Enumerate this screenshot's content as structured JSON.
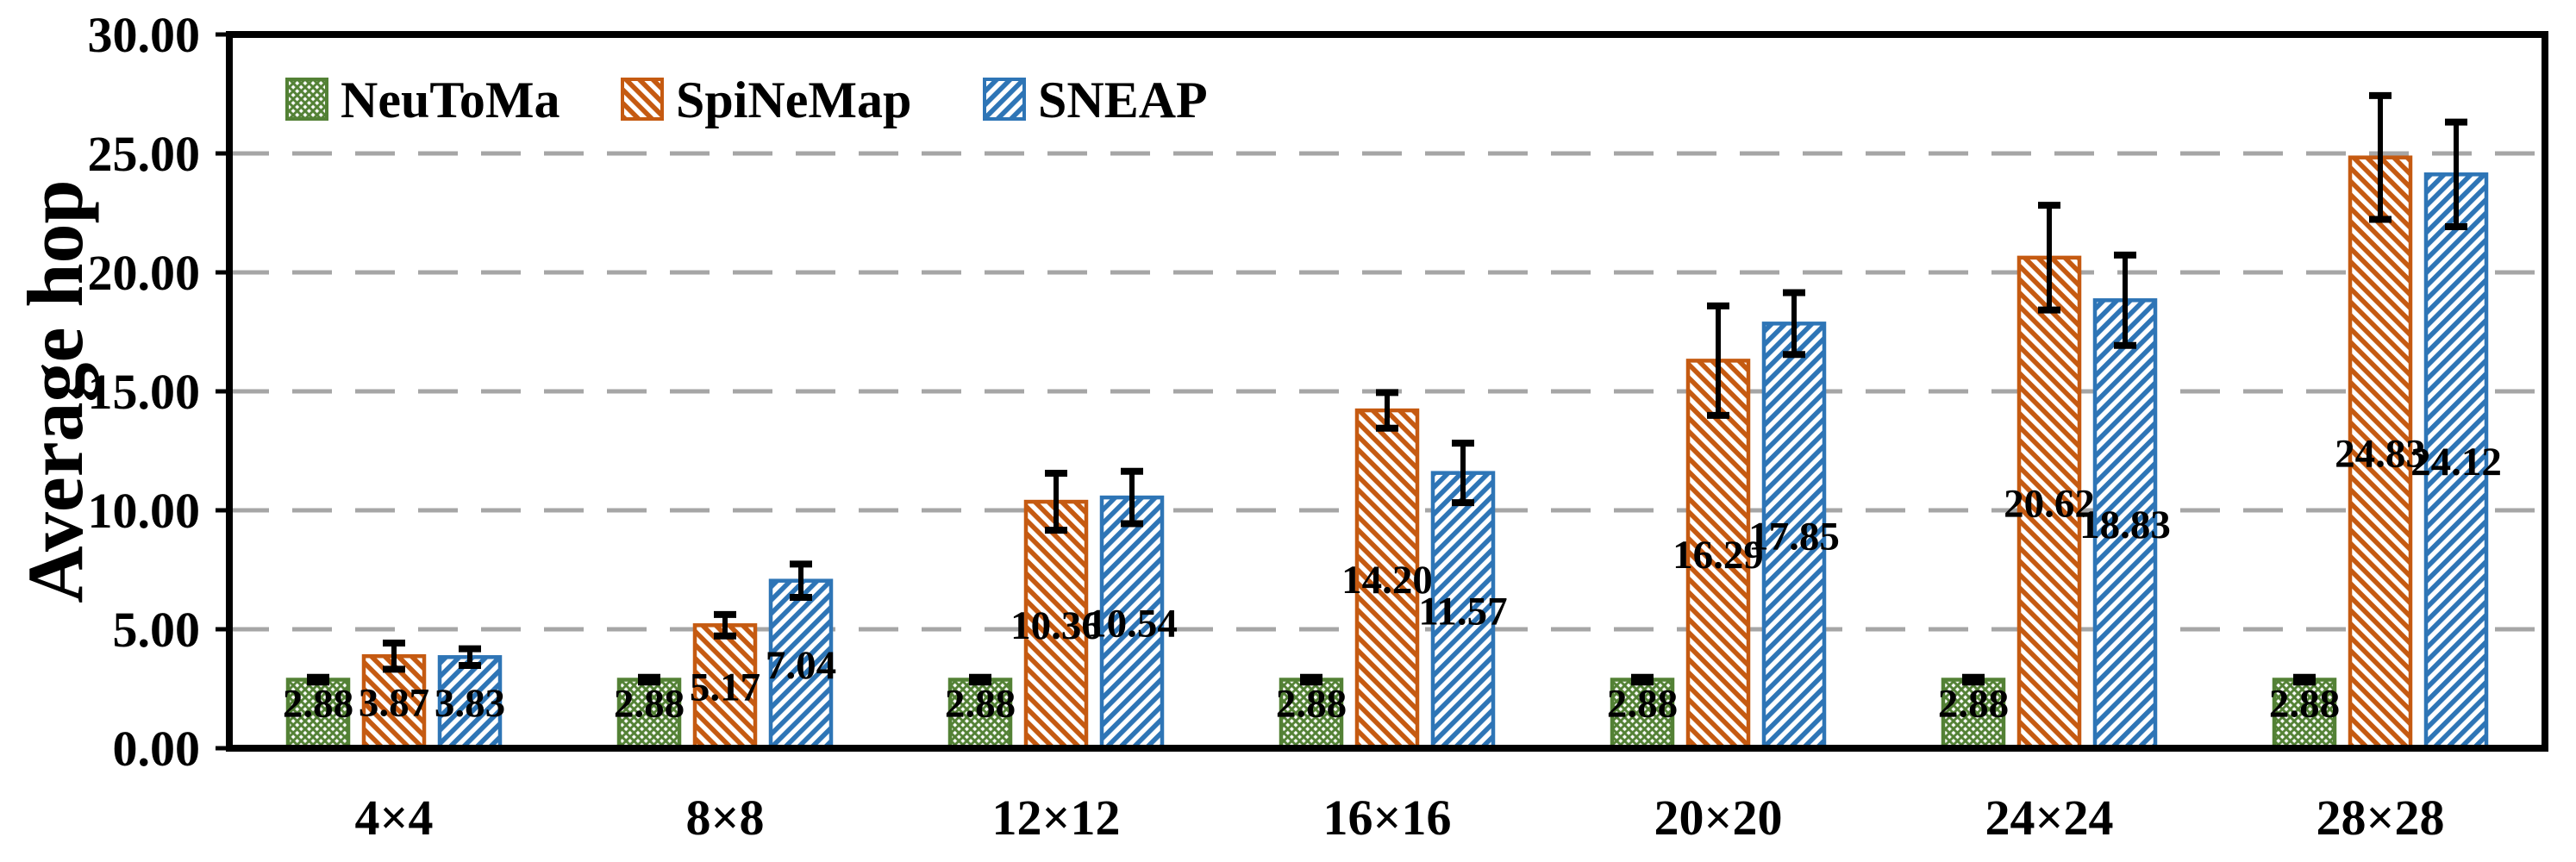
{
  "chart_data": {
    "type": "bar",
    "title": "",
    "ylabel": "Average hop",
    "xlabel": "",
    "categories": [
      "4×4",
      "8×8",
      "12×12",
      "16×16",
      "20×20",
      "24×24",
      "28×28"
    ],
    "series": [
      {
        "name": "NeuToMa",
        "color": "#538135",
        "hatch": "crosshatch",
        "values": [
          2.88,
          2.88,
          2.88,
          2.88,
          2.88,
          2.88,
          2.88
        ],
        "errors": [
          0.1,
          0.1,
          0.1,
          0.1,
          0.1,
          0.1,
          0.1
        ]
      },
      {
        "name": "SpiNeMap",
        "color": "#C55A11",
        "hatch": "diagonal-down",
        "values": [
          3.87,
          5.17,
          10.36,
          14.2,
          16.29,
          20.62,
          24.83
        ],
        "errors": [
          0.55,
          0.45,
          1.2,
          0.75,
          2.3,
          2.2,
          2.6
        ]
      },
      {
        "name": "SNEAP",
        "color": "#2E75B6",
        "hatch": "diagonal-up",
        "values": [
          3.83,
          7.04,
          10.54,
          11.57,
          17.85,
          18.83,
          24.12
        ],
        "errors": [
          0.35,
          0.7,
          1.1,
          1.25,
          1.3,
          1.9,
          2.2
        ]
      }
    ],
    "ylim": [
      0,
      30
    ],
    "ytick_step": 5,
    "ytick_labels": [
      "0.00",
      "5.00",
      "10.00",
      "15.00",
      "20.00",
      "25.00",
      "30.00"
    ],
    "grid": {
      "style": "dashed",
      "color": "#A6A6A6",
      "axis": "y"
    },
    "legend": {
      "position": "top-left-inside",
      "labels": [
        "NeuToMa",
        "SpiNeMap",
        "SNEAP"
      ]
    },
    "value_label_format": "2dp",
    "error_bar_color": "#000000",
    "axis_color": "#000000",
    "background_color": "#FFFFFF"
  }
}
